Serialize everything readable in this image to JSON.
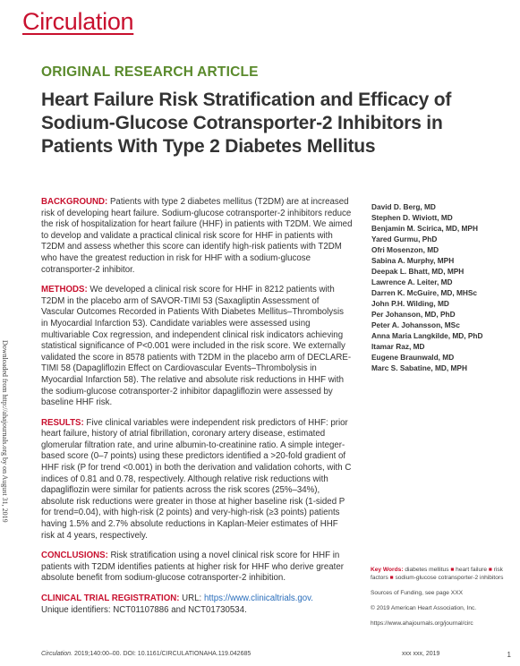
{
  "journal": "Circulation",
  "section_label": "ORIGINAL RESEARCH ARTICLE",
  "title": "Heart Failure Risk Stratification and Efficacy of Sodium-Glucose Cotransporter-2 Inhibitors in Patients With Type 2 Diabetes Mellitus",
  "download_note": "Downloaded from http://ahajournals.org by on August 31, 2019",
  "abstract": {
    "background_head": "BACKGROUND:",
    "background": "Patients with type 2 diabetes mellitus (T2DM) are at increased risk of developing heart failure. Sodium-glucose cotransporter-2 inhibitors reduce the risk of hospitalization for heart failure (HHF) in patients with T2DM. We aimed to develop and validate a practical clinical risk score for HHF in patients with T2DM and assess whether this score can identify high-risk patients with T2DM who have the greatest reduction in risk for HHF with a sodium-glucose cotransporter-2 inhibitor.",
    "methods_head": "METHODS:",
    "methods": "We developed a clinical risk score for HHF in 8212 patients with T2DM in the placebo arm of SAVOR-TIMI 53 (Saxagliptin Assessment of Vascular Outcomes Recorded in Patients With Diabetes Mellitus–Thrombolysis in Myocardial Infarction 53). Candidate variables were assessed using multivariable Cox regression, and independent clinical risk indicators achieving statistical significance of P<0.001 were included in the risk score. We externally validated the score in 8578 patients with T2DM in the placebo arm of DECLARE-TIMI 58 (Dapagliflozin Effect on Cardiovascular Events–Thrombolysis in Myocardial Infarction 58). The relative and absolute risk reductions in HHF with the sodium-glucose cotransporter-2 inhibitor dapagliflozin were assessed by baseline HHF risk.",
    "results_head": "RESULTS:",
    "results": "Five clinical variables were independent risk predictors of HHF: prior heart failure, history of atrial fibrillation, coronary artery disease, estimated glomerular filtration rate, and urine albumin-to-creatinine ratio. A simple integer-based score (0–7 points) using these predictors identified a >20-fold gradient of HHF risk (P for trend <0.001) in both the derivation and validation cohorts, with C indices of 0.81 and 0.78, respectively. Although relative risk reductions with dapagliflozin were similar for patients across the risk scores (25%–34%), absolute risk reductions were greater in those at higher baseline risk (1-sided P for trend=0.04), with high-risk (2 points) and very-high-risk (≥3 points) patients having 1.5% and 2.7% absolute reductions in Kaplan-Meier estimates of HHF risk at 4 years, respectively.",
    "conclusions_head": "CONCLUSIONS:",
    "conclusions": "Risk stratification using a novel clinical risk score for HHF in patients with T2DM identifies patients at higher risk for HHF who derive greater absolute benefit from sodium-glucose cotransporter-2 inhibition.",
    "registration_head": "CLINICAL TRIAL REGISTRATION:",
    "registration_url_label": "URL:",
    "registration_url": "https://www.clinicaltrials.gov.",
    "registration_ids": "Unique identifiers: NCT01107886 and NCT01730534."
  },
  "authors": [
    "David D. Berg, MD",
    "Stephen D. Wiviott, MD",
    "Benjamin M. Scirica, MD, MPH",
    "Yared Gurmu, PhD",
    "Ofri Mosenzon, MD",
    "Sabina A. Murphy, MPH",
    "Deepak L. Bhatt, MD, MPH",
    "Lawrence A. Leiter, MD",
    "Darren K. McGuire, MD, MHSc",
    "John P.H. Wilding, MD",
    "Per Johanson, MD, PhD",
    "Peter A. Johansson, MSc",
    "Anna Maria Langkilde, MD, PhD",
    "Itamar Raz, MD",
    "Eugene Braunwald, MD",
    "Marc S. Sabatine, MD, MPH"
  ],
  "side": {
    "key_words_label": "Key Words:",
    "key_words": [
      "diabetes mellitus",
      "heart failure",
      "risk factors",
      "sodium-glucose cotransporter-2 inhibitors"
    ],
    "sources": "Sources of Funding, see page XXX",
    "copyright": "© 2019 American Heart Association, Inc.",
    "website": "https://www.ahajournals.org/journal/circ"
  },
  "footer": {
    "citation_journal": "Circulation.",
    "citation_rest": "2019;140:00–00. DOI: 10.1161/CIRCULATIONAHA.119.042685",
    "date": "xxx xxx, 2019",
    "page": "1"
  },
  "colors": {
    "brand_red": "#c8102e",
    "section_green": "#5a8a2c",
    "link_blue": "#2a6ebb"
  }
}
